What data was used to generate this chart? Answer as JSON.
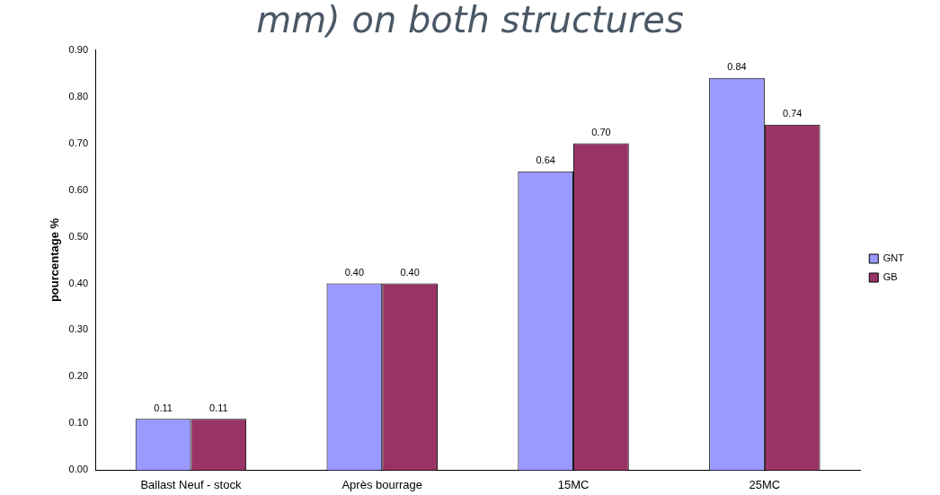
{
  "chart_data": {
    "type": "bar",
    "title": "mm) on both structures",
    "ylabel": "pourcentage %",
    "categories": [
      "Ballast Neuf - stock",
      "Après bourrage",
      "15MC",
      "25MC"
    ],
    "series": [
      {
        "name": "GNT",
        "color": "#9999ff",
        "values": [
          0.11,
          0.4,
          0.64,
          0.84
        ],
        "value_labels": [
          "0.11",
          "0.40",
          "0.64",
          "0.84"
        ]
      },
      {
        "name": "GB",
        "color": "#993366",
        "values": [
          0.11,
          0.4,
          0.7,
          0.74
        ],
        "value_labels": [
          "0.11",
          "0.40",
          "0.70",
          "0.74"
        ]
      }
    ],
    "ylim": [
      0,
      0.9
    ],
    "yticks": [
      {
        "value": 0,
        "label": "0.00"
      },
      {
        "value": 0.1,
        "label": "0.10"
      },
      {
        "value": 0.2,
        "label": "0.20"
      },
      {
        "value": 0.3,
        "label": "0.30"
      },
      {
        "value": 0.4,
        "label": "0.40"
      },
      {
        "value": 0.5,
        "label": "0.50"
      },
      {
        "value": 0.6,
        "label": "0.60"
      },
      {
        "value": 0.7,
        "label": "0.70"
      },
      {
        "value": 0.8,
        "label": "0.80"
      },
      {
        "value": 0.9,
        "label": "0.90"
      }
    ],
    "grid": false,
    "legend": "right"
  }
}
